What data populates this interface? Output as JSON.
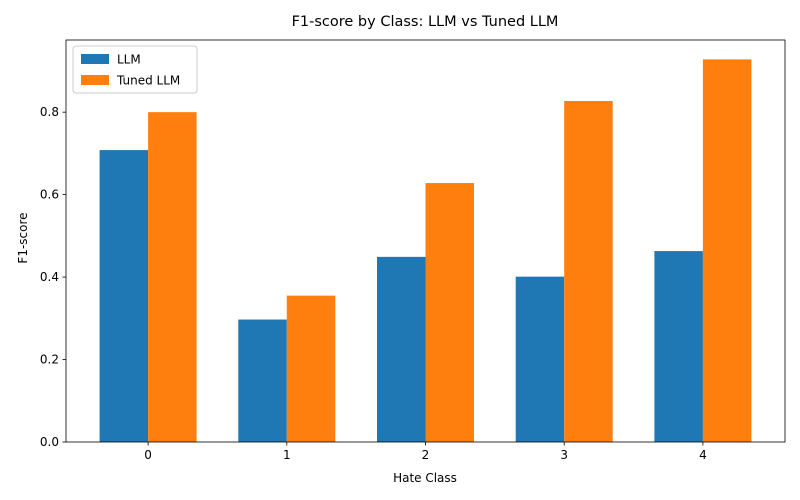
{
  "chart_data": {
    "type": "bar",
    "title": "F1-score by Class: LLM vs Tuned LLM",
    "xlabel": "Hate Class",
    "ylabel": "F1-score",
    "categories": [
      "0",
      "1",
      "2",
      "3",
      "4"
    ],
    "series": [
      {
        "name": "LLM",
        "color": "#1f77b4",
        "values": [
          0.708,
          0.297,
          0.449,
          0.401,
          0.463
        ]
      },
      {
        "name": "Tuned LLM",
        "color": "#ff7f0e",
        "values": [
          0.8,
          0.355,
          0.628,
          0.827,
          0.928
        ]
      }
    ],
    "ylim": [
      0,
      0.975
    ],
    "yticks": [
      0.0,
      0.2,
      0.4,
      0.6,
      0.8
    ],
    "ytick_labels": [
      "0.0",
      "0.2",
      "0.4",
      "0.6",
      "0.8"
    ],
    "legend_position": "upper-left",
    "grid": false
  }
}
